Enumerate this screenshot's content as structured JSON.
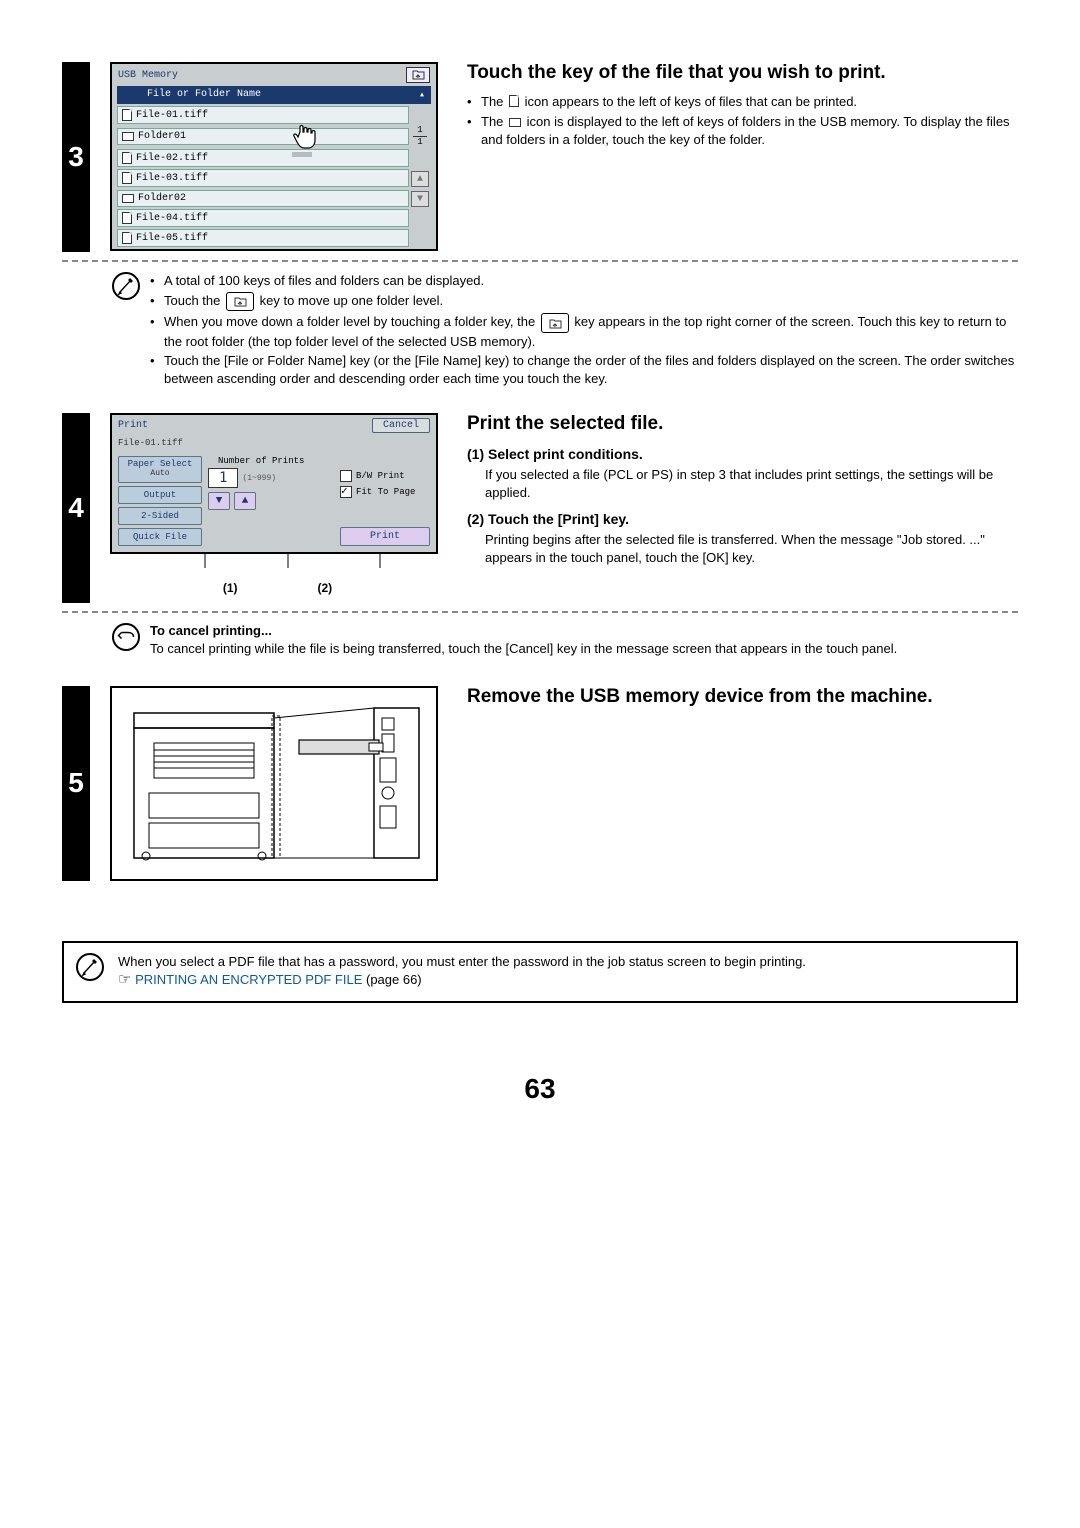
{
  "page_number": "63",
  "steps": {
    "s3": {
      "num": "3",
      "title": "Touch the key of the file that you wish to print.",
      "bullets_right": [
        "The  FILEICON  icon appears to the left of keys of files that can be printed.",
        "The  FOLDERICON  icon is displayed to the left of keys of folders in the USB memory. To display the files and folders in a folder, touch the key of the folder."
      ],
      "usb_panel": {
        "title": "USB Memory",
        "list_header": "File or Folder Name",
        "items": [
          {
            "icon": "file",
            "name": "File-01.tiff"
          },
          {
            "icon": "folder",
            "name": "Folder01"
          },
          {
            "icon": "file",
            "name": "File-02.tiff"
          },
          {
            "icon": "file",
            "name": "File-03.tiff"
          },
          {
            "icon": "folder",
            "name": "Folder02"
          },
          {
            "icon": "file",
            "name": "File-04.tiff"
          },
          {
            "icon": "file",
            "name": "File-05.tiff"
          }
        ],
        "page_indicator_top": "1",
        "page_indicator_bot": "1"
      },
      "note_bullets": [
        "A total of 100 keys of files and folders can be displayed.",
        "Touch the  UPKEY  key to move up one folder level.",
        "When you move down a folder level by touching a folder key, the  UPKEY  key appears in the top right corner of the screen. Touch this key to return to the root folder (the top folder level of the selected USB memory).",
        "Touch the [File or Folder Name] key (or the [File Name] key) to change the order of the files and folders displayed on the screen. The order switches between ascending order and descending order each time you touch the key."
      ]
    },
    "s4": {
      "num": "4",
      "title": "Print the selected file.",
      "sub1_title": "(1)  Select print conditions.",
      "sub1_body": "If you selected a file (PCL or PS) in step 3 that includes print settings, the settings will be applied.",
      "sub2_title": "(2)  Touch the [Print] key.",
      "sub2_body": "Printing begins after the selected file is transferred. When the message \"Job stored. ...\" appears in the touch panel, touch the [OK] key.",
      "print_panel": {
        "header": "Print",
        "cancel": "Cancel",
        "filename": "File-01.tiff",
        "btn_paper_select": "Paper Select",
        "btn_paper_sub": "Auto",
        "btn_output": "Output",
        "btn_2sided": "2-Sided",
        "btn_quickfile": "Quick File",
        "num_label": "Number of Prints",
        "num_value": "1",
        "num_range": "(1~999)",
        "chk_bw": "B/W Print",
        "chk_fit": "Fit To Page",
        "print_btn": "Print"
      },
      "callout_1": "(1)",
      "callout_2": "(2)",
      "cancel_title": "To cancel printing...",
      "cancel_body": "To cancel printing while the file is being transferred, touch the [Cancel] key in the message screen that appears in the touch panel."
    },
    "s5": {
      "num": "5",
      "title": "Remove the USB memory device from the machine."
    }
  },
  "footer": {
    "text_prefix": "When you select a PDF file that has a password, you must enter the password in the job status screen to begin printing.",
    "link_text": "PRINTING AN ENCRYPTED PDF FILE",
    "link_suffix": " (page 66)"
  },
  "colors": {
    "accent_blue": "#1a3a6d",
    "link_blue": "#0b5aa5",
    "panel_bg": "#c8cdd0",
    "item_bg": "#e8f0f4"
  }
}
